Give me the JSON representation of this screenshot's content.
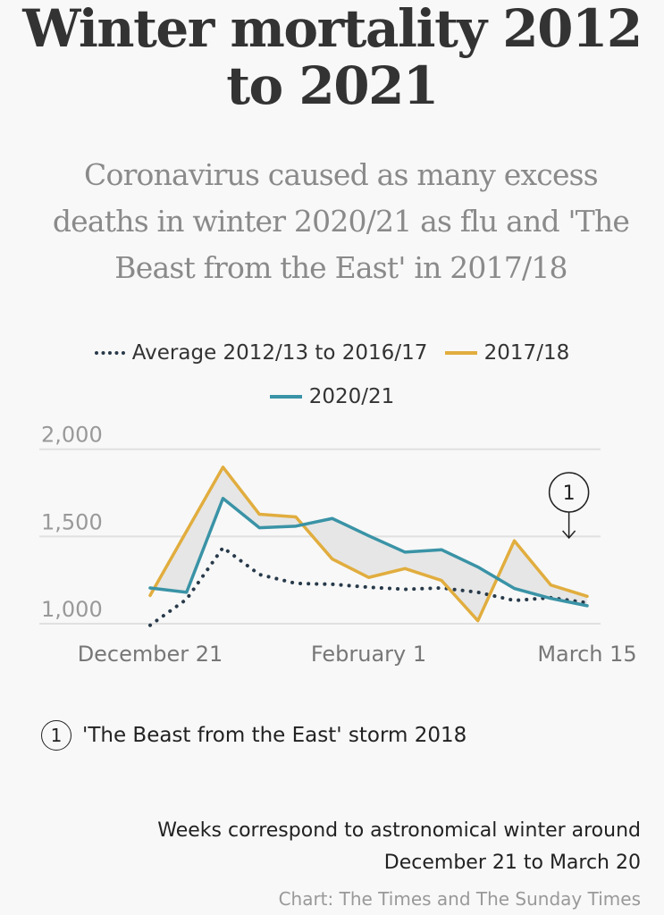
{
  "title": "Winter mortality 2012 to 2021",
  "subtitle": "Coronavirus caused as many excess deaths in winter 2020/21 as flu and 'The Beast from the East' in 2017/18",
  "note": {
    "marker": "1",
    "text": "'The Beast from the East' storm 2018"
  },
  "footnote_line1": "Weeks correspond to astronomical winter around",
  "footnote_line2": "December 21 to March 20",
  "source": "Chart: The Times and The Sunday Times",
  "chart_data": {
    "type": "line",
    "title": "Winter mortality 2012 to 2021",
    "x_ticks": [
      {
        "week": 0,
        "label": "December 21"
      },
      {
        "week": 6,
        "label": "February 1"
      },
      {
        "week": 12,
        "label": "March 15"
      }
    ],
    "y_ticks": [
      {
        "value": 1000,
        "label": "1,000"
      },
      {
        "value": 1500,
        "label": "1,500"
      },
      {
        "value": 2000,
        "label": "2,000"
      }
    ],
    "ylim": [
      1000,
      2000
    ],
    "grid": true,
    "legend": "top-center",
    "x": [
      0,
      1,
      2,
      3,
      4,
      5,
      6,
      7,
      8,
      9,
      10,
      11,
      12
    ],
    "series": [
      {
        "name": "Average 2012/13 to 2016/17",
        "style": "dotted",
        "color": "#283a4a",
        "values": [
          991,
          1140,
          1436,
          1282,
          1231,
          1226,
          1209,
          1197,
          1205,
          1180,
          1133,
          1149,
          1120
        ]
      },
      {
        "name": "2017/18",
        "style": "solid",
        "color": "#e1ad3e",
        "values": [
          1162,
          1530,
          1897,
          1627,
          1612,
          1371,
          1265,
          1316,
          1248,
          1017,
          1475,
          1222,
          1157
        ]
      },
      {
        "name": "2020/21",
        "style": "solid",
        "color": "#3a93a6",
        "values": [
          1205,
          1180,
          1718,
          1550,
          1559,
          1603,
          1504,
          1410,
          1424,
          1325,
          1202,
          1145,
          1103
        ]
      }
    ],
    "shaded_between": [
      "2017/18",
      "2020/21"
    ],
    "annotation": {
      "label": "1",
      "week": 11.5
    }
  }
}
